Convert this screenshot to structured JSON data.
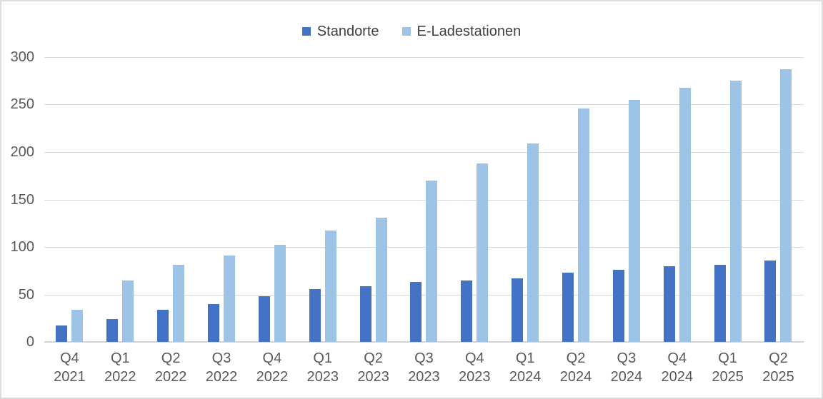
{
  "chart_data": {
    "type": "bar",
    "title": "",
    "xlabel": "",
    "ylabel": "",
    "categories": [
      "Q4 2021",
      "Q1 2022",
      "Q2 2022",
      "Q3 2022",
      "Q4 2022",
      "Q1 2023",
      "Q2 2023",
      "Q3 2023",
      "Q4 2023",
      "Q1 2024",
      "Q2 2024",
      "Q3 2024",
      "Q4 2024",
      "Q1 2025",
      "Q2 2025"
    ],
    "series": [
      {
        "name": "Standorte",
        "color": "#4472C4",
        "values": [
          17,
          24,
          34,
          40,
          48,
          56,
          59,
          63,
          65,
          67,
          73,
          76,
          80,
          81,
          86
        ]
      },
      {
        "name": "E-Ladestationen",
        "color": "#9DC3E6",
        "values": [
          34,
          65,
          81,
          91,
          102,
          117,
          131,
          170,
          188,
          209,
          246,
          255,
          268,
          275,
          287
        ]
      }
    ],
    "ylim": [
      0,
      300
    ],
    "yticks": [
      0,
      50,
      100,
      150,
      200,
      250,
      300
    ],
    "grid": true,
    "legend_position": "top-center",
    "colors": {
      "gridline": "#D9D9D9",
      "baseline": "#D3D3D3",
      "tick_label": "#595959",
      "legend_text": "#404040",
      "background": "#FFFFFF",
      "card_border": "#DCDCDC"
    }
  }
}
